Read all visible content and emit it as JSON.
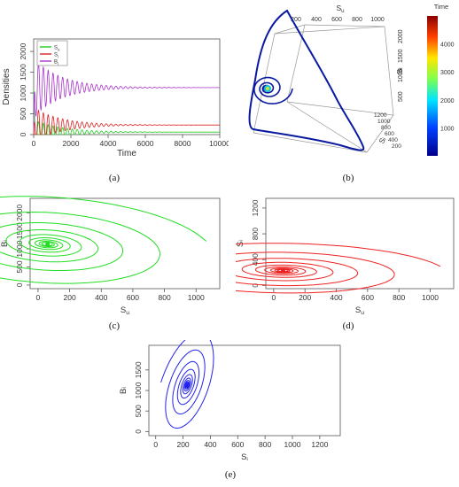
{
  "figure": {
    "captions": [
      "(a)",
      "(b)",
      "(c)",
      "(d)",
      "(e)"
    ]
  },
  "chart_data": [
    {
      "id": "a",
      "type": "line",
      "title": "",
      "xlabel": "Time",
      "ylabel": "Densities",
      "xlim": [
        0,
        10000
      ],
      "ylim": [
        0,
        2300
      ],
      "xticks": [
        0,
        2000,
        4000,
        6000,
        8000,
        10000
      ],
      "yticks": [
        0,
        500,
        1000,
        1500,
        2000
      ],
      "legend": {
        "placement": "top-left",
        "entries": [
          "Su",
          "Si",
          "Bi"
        ]
      },
      "series": [
        {
          "name": "Su",
          "color": "#22cc22",
          "initial": 1100,
          "final": 60,
          "amplitude": 300,
          "period": 260,
          "decay": 1500
        },
        {
          "name": "Si",
          "color": "#dd2222",
          "initial": 10,
          "final": 230,
          "amplitude": 420,
          "period": 260,
          "decay": 1500
        },
        {
          "name": "Bi",
          "color": "#aa33cc",
          "initial": 100,
          "final": 1130,
          "amplitude": 700,
          "period": 260,
          "decay": 1500
        }
      ]
    },
    {
      "id": "b",
      "type": "line",
      "subtype": "3d-trajectory",
      "axes": {
        "top": {
          "label": "Su",
          "ticks": [
            200,
            400,
            600,
            800,
            1000
          ]
        },
        "right": {
          "label": "Bi",
          "ticks": [
            500,
            1000,
            1500,
            2000
          ]
        },
        "depth": {
          "label": "Si",
          "ticks": [
            200,
            400,
            600,
            800,
            1000,
            1200
          ]
        }
      },
      "colorbar": {
        "title": "Time",
        "ticks": [
          1000,
          2000,
          3000,
          4000
        ],
        "range": [
          0,
          5000
        ]
      },
      "line_color": "#0a1aa0"
    },
    {
      "id": "c",
      "type": "line",
      "subtype": "phase-portrait",
      "xlabel": "Su",
      "ylabel": "Bi",
      "xlim": [
        -50,
        1150
      ],
      "ylim": [
        -100,
        2400
      ],
      "xticks": [
        0,
        200,
        400,
        600,
        800,
        1000
      ],
      "yticks": [
        0,
        500,
        1000,
        1500,
        2000
      ],
      "color": "#22dd22",
      "start": [
        1100,
        100
      ],
      "equilibrium": [
        60,
        1130
      ]
    },
    {
      "id": "d",
      "type": "line",
      "subtype": "phase-portrait",
      "xlabel": "Su",
      "ylabel": "Si",
      "xlim": [
        -50,
        1150
      ],
      "ylim": [
        -50,
        1350
      ],
      "xticks": [
        0,
        200,
        400,
        600,
        800,
        1000
      ],
      "yticks": [
        0,
        400,
        800,
        1200
      ],
      "color": "#ee2222",
      "start": [
        1100,
        10
      ],
      "equilibrium": [
        60,
        230
      ]
    },
    {
      "id": "e",
      "type": "line",
      "subtype": "phase-portrait",
      "xlabel": "Si",
      "ylabel": "Bi",
      "xlim": [
        -50,
        1350
      ],
      "ylim": [
        -100,
        2100
      ],
      "xticks": [
        0,
        200,
        400,
        600,
        800,
        1000,
        1200
      ],
      "yticks": [
        0,
        500,
        1000,
        1500
      ],
      "color": "#2222ee",
      "start": [
        10,
        100
      ],
      "equilibrium": [
        230,
        1130
      ]
    }
  ]
}
